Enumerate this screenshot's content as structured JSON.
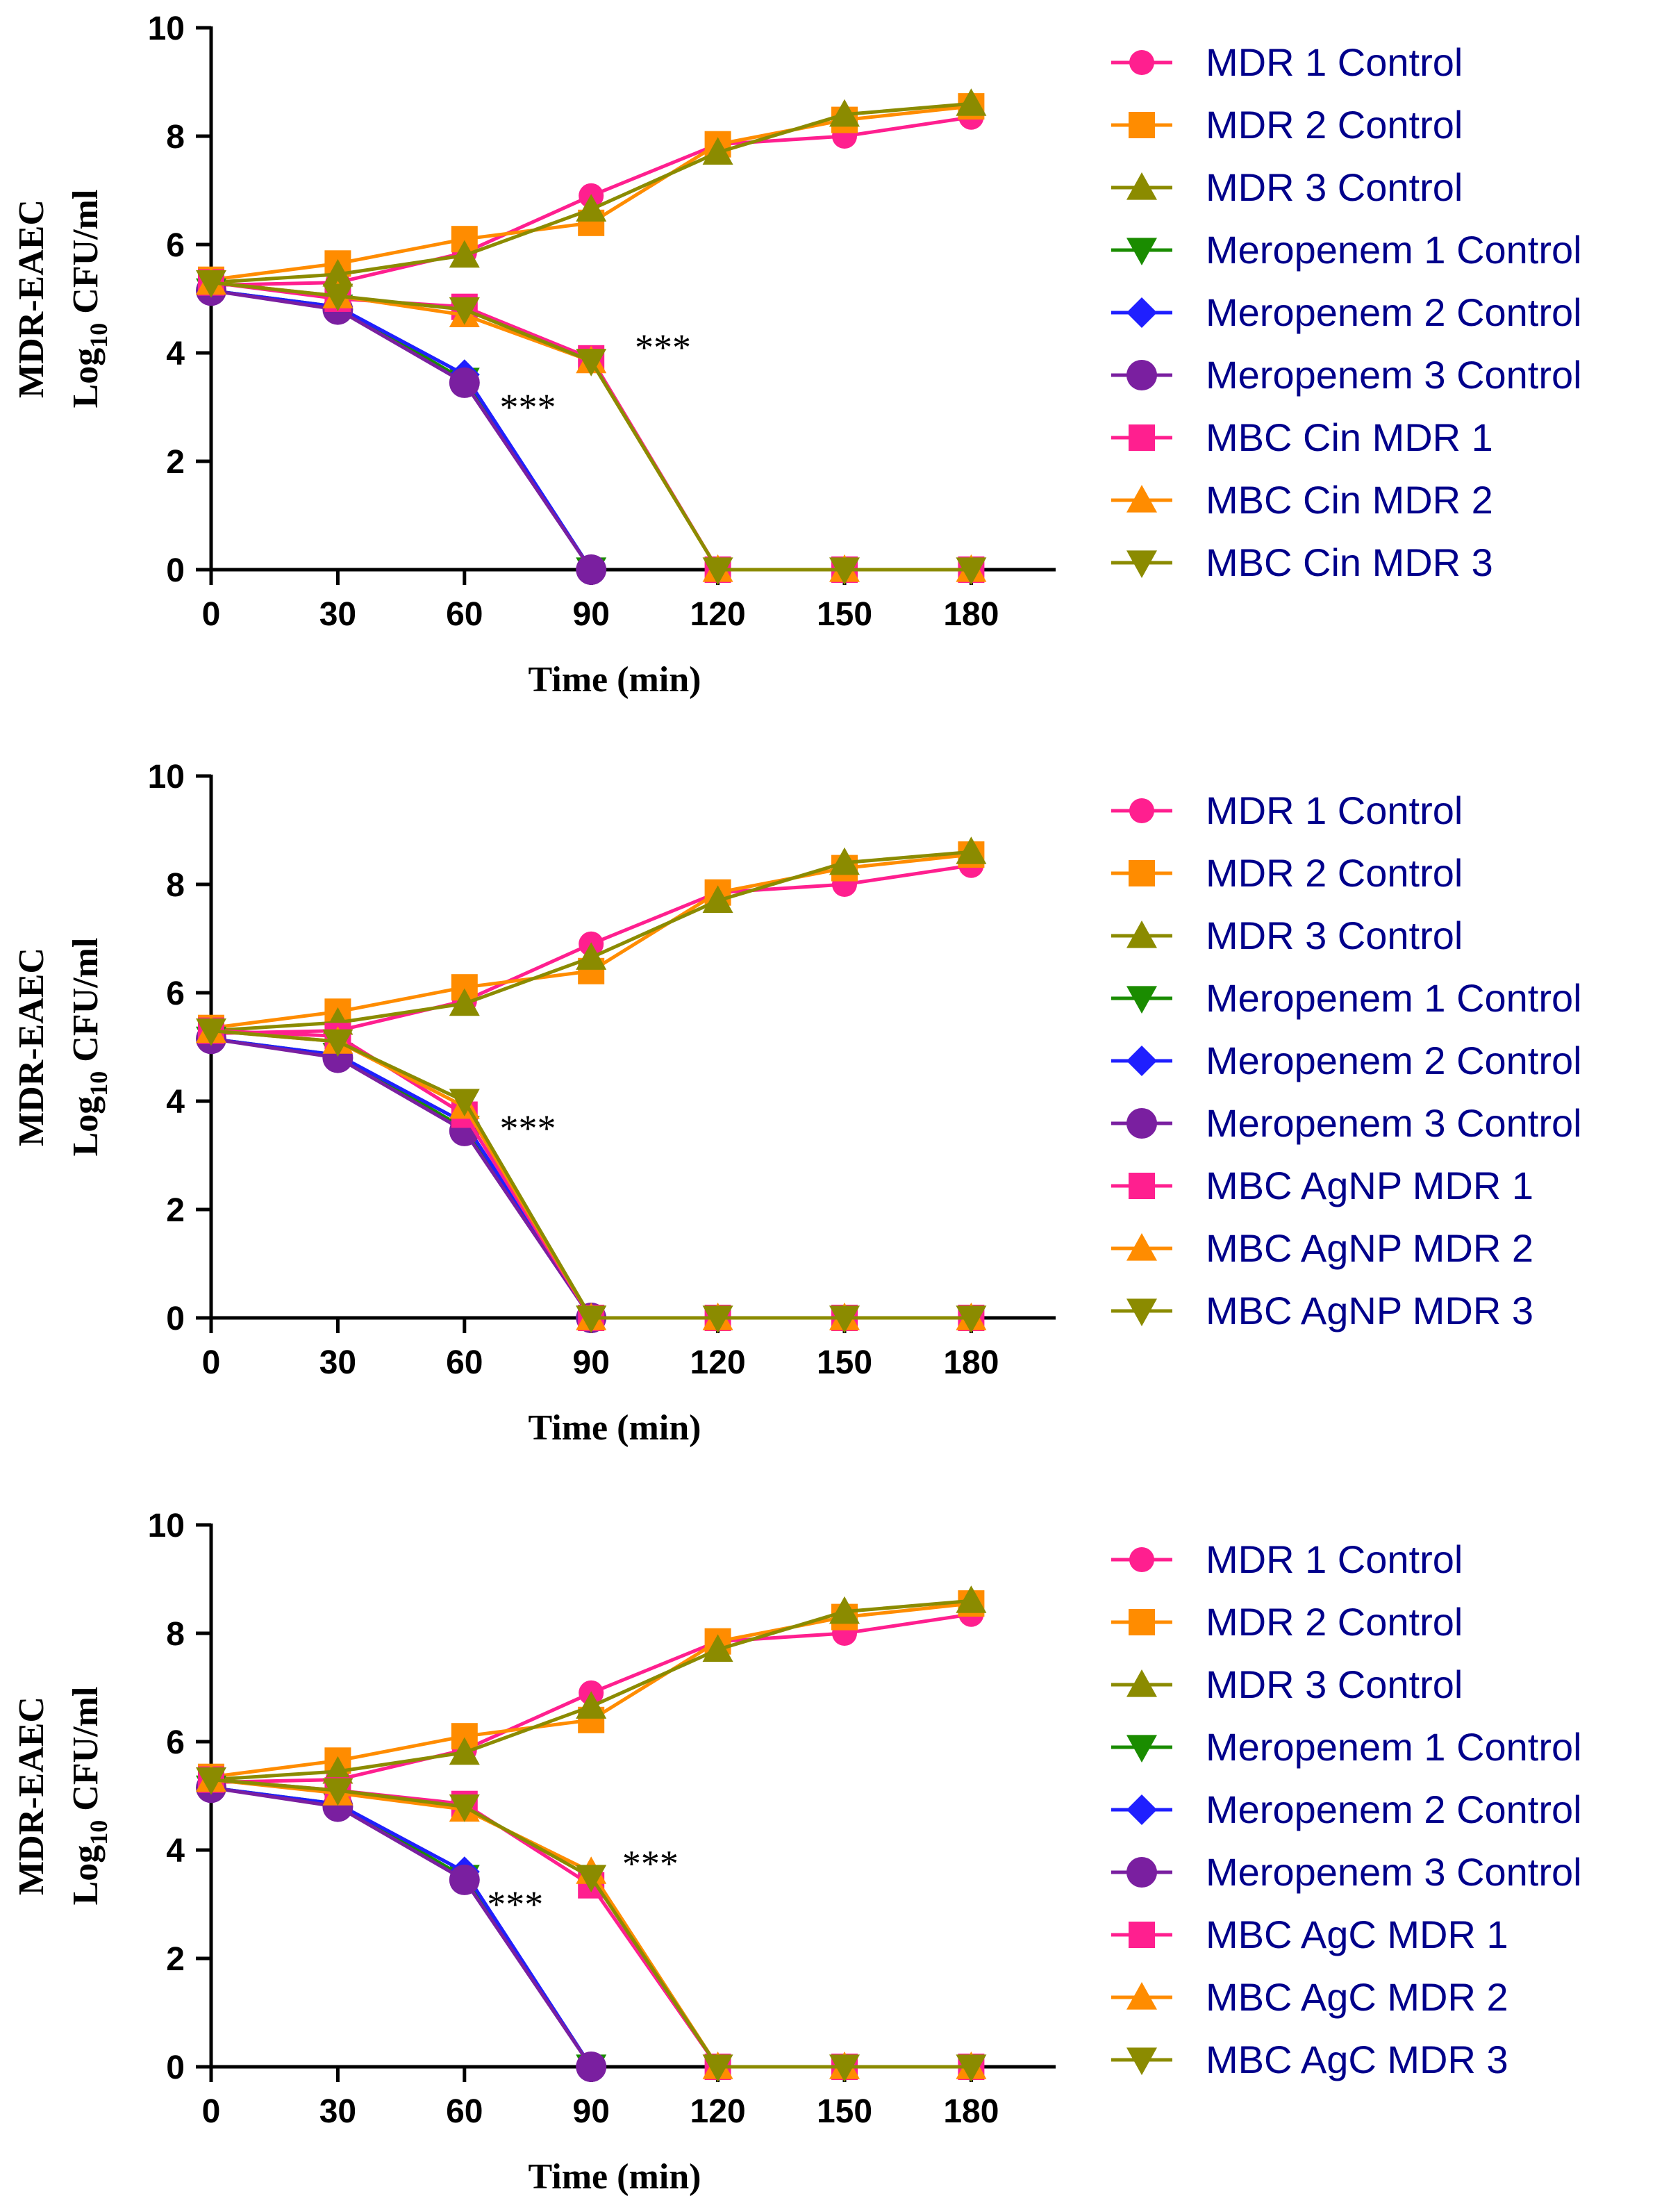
{
  "chart_data": [
    {
      "type": "line",
      "panel": "top",
      "ylabel_line1": "MDR-EAEC",
      "ylabel_log": "Log",
      "ylabel_sub": "10",
      "ylabel_unit": " CFU/ml",
      "xlabel": "Time (min)",
      "xlim": [
        0,
        200
      ],
      "ylim": [
        0,
        10
      ],
      "x_ticks": [
        "0",
        "30",
        "60",
        "90",
        "120",
        "150",
        "180"
      ],
      "y_ticks": [
        "0",
        "2",
        "4",
        "6",
        "8",
        "10"
      ],
      "annotations": [
        {
          "text": "***",
          "x": 75,
          "y": 3.0
        },
        {
          "text": "***",
          "x": 107,
          "y": 4.1
        }
      ],
      "series": [
        {
          "name": "MDR 1 Control",
          "color": "#ff1f8f",
          "marker": "circle",
          "x": [
            0,
            30,
            60,
            90,
            120,
            150,
            180
          ],
          "values": [
            5.25,
            5.3,
            5.85,
            6.9,
            7.85,
            8.0,
            8.35
          ]
        },
        {
          "name": "MDR 2 Control",
          "color": "#ff8c00",
          "marker": "square",
          "x": [
            0,
            30,
            60,
            90,
            120,
            150,
            180
          ],
          "values": [
            5.35,
            5.65,
            6.1,
            6.4,
            7.85,
            8.3,
            8.55
          ]
        },
        {
          "name": "MDR 3 Control",
          "color": "#8b8b00",
          "marker": "triangle-up",
          "x": [
            0,
            30,
            60,
            90,
            120,
            150,
            180
          ],
          "values": [
            5.3,
            5.45,
            5.8,
            6.65,
            7.7,
            8.4,
            8.6
          ]
        },
        {
          "name": "Meropenem 1 Control",
          "color": "#1a8c00",
          "marker": "triangle-down",
          "x": [
            0,
            30,
            60,
            90
          ],
          "values": [
            5.15,
            4.85,
            3.5,
            0
          ]
        },
        {
          "name": "Meropenem 2 Control",
          "color": "#1f1fff",
          "marker": "diamond",
          "x": [
            0,
            30,
            60,
            90
          ],
          "values": [
            5.15,
            4.85,
            3.6,
            0
          ]
        },
        {
          "name": "Meropenem 3 Control",
          "color": "#7a1fa0",
          "marker": "circle-large",
          "x": [
            0,
            30,
            60,
            90
          ],
          "values": [
            5.15,
            4.8,
            3.45,
            0
          ]
        },
        {
          "name": "MBC Cin  MDR 1",
          "color": "#ff1f8f",
          "marker": "square",
          "x": [
            0,
            30,
            60,
            90,
            120,
            150,
            180
          ],
          "values": [
            5.3,
            5.0,
            4.85,
            3.9,
            0,
            0,
            0
          ]
        },
        {
          "name": "MBC Cin MDR 2",
          "color": "#ff8c00",
          "marker": "triangle-up",
          "x": [
            0,
            30,
            60,
            90,
            120,
            150,
            180
          ],
          "values": [
            5.3,
            5.05,
            4.7,
            3.85,
            0,
            0,
            0
          ]
        },
        {
          "name": "MBC Cin MDR 3",
          "color": "#8b8b00",
          "marker": "triangle-down",
          "x": [
            0,
            30,
            60,
            90,
            120,
            150,
            180
          ],
          "values": [
            5.3,
            5.05,
            4.8,
            3.85,
            0,
            0,
            0
          ]
        }
      ]
    },
    {
      "type": "line",
      "panel": "middle",
      "ylabel_line1": "MDR-EAEC",
      "ylabel_log": "Log",
      "ylabel_sub": "10",
      "ylabel_unit": " CFU/ml",
      "xlabel": "Time (min)",
      "xlim": [
        0,
        200
      ],
      "ylim": [
        0,
        10
      ],
      "x_ticks": [
        "0",
        "30",
        "60",
        "90",
        "120",
        "150",
        "180"
      ],
      "y_ticks": [
        "0",
        "2",
        "4",
        "6",
        "8",
        "10"
      ],
      "annotations": [
        {
          "text": "***",
          "x": 75,
          "y": 3.5
        }
      ],
      "series": [
        {
          "name": "MDR 1 Control",
          "color": "#ff1f8f",
          "marker": "circle",
          "x": [
            0,
            30,
            60,
            90,
            120,
            150,
            180
          ],
          "values": [
            5.25,
            5.3,
            5.85,
            6.9,
            7.85,
            8.0,
            8.35
          ]
        },
        {
          "name": "MDR 2 Control",
          "color": "#ff8c00",
          "marker": "square",
          "x": [
            0,
            30,
            60,
            90,
            120,
            150,
            180
          ],
          "values": [
            5.35,
            5.65,
            6.1,
            6.4,
            7.85,
            8.3,
            8.55
          ]
        },
        {
          "name": "MDR 3 Control",
          "color": "#8b8b00",
          "marker": "triangle-up",
          "x": [
            0,
            30,
            60,
            90,
            120,
            150,
            180
          ],
          "values": [
            5.3,
            5.45,
            5.8,
            6.65,
            7.7,
            8.4,
            8.6
          ]
        },
        {
          "name": "Meropenem 1 Control",
          "color": "#1a8c00",
          "marker": "triangle-down",
          "x": [
            0,
            30,
            60,
            90
          ],
          "values": [
            5.15,
            4.85,
            3.5,
            0
          ]
        },
        {
          "name": "Meropenem 2 Control",
          "color": "#1f1fff",
          "marker": "diamond",
          "x": [
            0,
            30,
            60,
            90
          ],
          "values": [
            5.15,
            4.85,
            3.6,
            0
          ]
        },
        {
          "name": "Meropenem 3 Control",
          "color": "#7a1fa0",
          "marker": "circle-large",
          "x": [
            0,
            30,
            60,
            90
          ],
          "values": [
            5.15,
            4.8,
            3.45,
            0
          ]
        },
        {
          "name": "MBC AgNP  MDR 1",
          "color": "#ff1f8f",
          "marker": "square",
          "x": [
            0,
            30,
            60,
            90,
            120,
            150,
            180
          ],
          "values": [
            5.3,
            5.2,
            3.75,
            0,
            0,
            0,
            0
          ]
        },
        {
          "name": "MBC AgNP MDR 2",
          "color": "#ff8c00",
          "marker": "triangle-up",
          "x": [
            0,
            30,
            60,
            90,
            120,
            150,
            180
          ],
          "values": [
            5.3,
            5.1,
            3.9,
            0,
            0,
            0,
            0
          ]
        },
        {
          "name": "MBC AgNP MDR 3",
          "color": "#8b8b00",
          "marker": "triangle-down",
          "x": [
            0,
            30,
            60,
            90,
            120,
            150,
            180
          ],
          "values": [
            5.3,
            5.1,
            4.0,
            0,
            0,
            0,
            0
          ]
        }
      ]
    },
    {
      "type": "line",
      "panel": "bottom",
      "ylabel_line1": "MDR-EAEC",
      "ylabel_log": "Log",
      "ylabel_sub": "10",
      "ylabel_unit": " CFU/ml",
      "xlabel": "Time (min)",
      "xlim": [
        0,
        200
      ],
      "ylim": [
        0,
        10
      ],
      "x_ticks": [
        "0",
        "30",
        "60",
        "90",
        "120",
        "150",
        "180"
      ],
      "y_ticks": [
        "0",
        "2",
        "4",
        "6",
        "8",
        "10"
      ],
      "annotations": [
        {
          "text": "***",
          "x": 72,
          "y": 3.0
        },
        {
          "text": "***",
          "x": 104,
          "y": 3.75
        }
      ],
      "series": [
        {
          "name": "MDR 1 Control",
          "color": "#ff1f8f",
          "marker": "circle",
          "x": [
            0,
            30,
            60,
            90,
            120,
            150,
            180
          ],
          "values": [
            5.25,
            5.3,
            5.85,
            6.9,
            7.85,
            8.0,
            8.35
          ]
        },
        {
          "name": "MDR 2 Control",
          "color": "#ff8c00",
          "marker": "square",
          "x": [
            0,
            30,
            60,
            90,
            120,
            150,
            180
          ],
          "values": [
            5.35,
            5.65,
            6.1,
            6.4,
            7.85,
            8.3,
            8.55
          ]
        },
        {
          "name": "MDR 3 Control",
          "color": "#8b8b00",
          "marker": "triangle-up",
          "x": [
            0,
            30,
            60,
            90,
            120,
            150,
            180
          ],
          "values": [
            5.3,
            5.45,
            5.8,
            6.65,
            7.7,
            8.4,
            8.6
          ]
        },
        {
          "name": "Meropenem 1 Control",
          "color": "#1a8c00",
          "marker": "triangle-down",
          "x": [
            0,
            30,
            60,
            90
          ],
          "values": [
            5.15,
            4.85,
            3.5,
            0
          ]
        },
        {
          "name": "Meropenem 2 Control",
          "color": "#1f1fff",
          "marker": "diamond",
          "x": [
            0,
            30,
            60,
            90
          ],
          "values": [
            5.15,
            4.85,
            3.6,
            0
          ]
        },
        {
          "name": "Meropenem 3 Control",
          "color": "#7a1fa0",
          "marker": "circle-large",
          "x": [
            0,
            30,
            60,
            90
          ],
          "values": [
            5.15,
            4.8,
            3.45,
            0
          ]
        },
        {
          "name": "MBC AgC MDR 1",
          "color": "#ff1f8f",
          "marker": "square",
          "x": [
            0,
            30,
            60,
            90,
            120,
            150,
            180
          ],
          "values": [
            5.3,
            5.1,
            4.85,
            3.35,
            0,
            0,
            0
          ]
        },
        {
          "name": "MBC AgC MDR 2",
          "color": "#ff8c00",
          "marker": "triangle-up",
          "x": [
            0,
            30,
            60,
            90,
            120,
            150,
            180
          ],
          "values": [
            5.3,
            5.05,
            4.75,
            3.6,
            0,
            0,
            0
          ]
        },
        {
          "name": "MBC AgC MDR 3",
          "color": "#8b8b00",
          "marker": "triangle-down",
          "x": [
            0,
            30,
            60,
            90,
            120,
            150,
            180
          ],
          "values": [
            5.3,
            5.1,
            4.8,
            3.5,
            0,
            0,
            0
          ]
        }
      ]
    }
  ]
}
